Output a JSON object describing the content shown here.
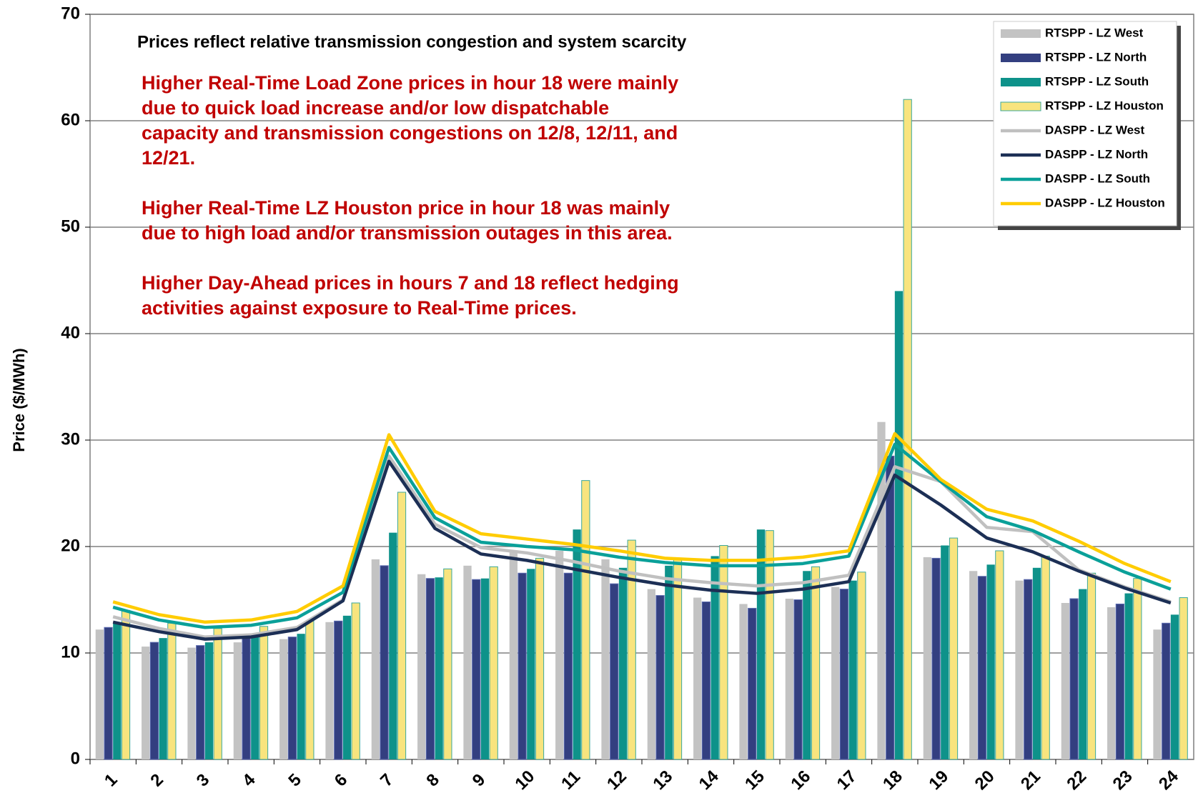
{
  "chart_data": {
    "type": "bar_line",
    "y_label": "Price ($/MWh)",
    "note": "Prices reflect relative transmission congestion and system scarcity",
    "annotations": [
      [
        "Higher Real-Time Load Zone prices in hour 18 were mainly",
        "due to quick load increase and/or low dispatchable",
        "capacity and transmission congestions on 12/8, 12/11, and",
        "12/21."
      ],
      [
        "Higher Real-Time LZ Houston price in hour 18 was mainly",
        "due to high load and/or transmission outages in this area."
      ],
      [
        "Higher Day-Ahead prices in hours 7 and 18 reflect hedging",
        "activities against exposure to Real-Time prices."
      ]
    ],
    "categories": [
      "1",
      "2",
      "3",
      "4",
      "5",
      "6",
      "7",
      "8",
      "9",
      "10",
      "11",
      "12",
      "13",
      "14",
      "15",
      "16",
      "17",
      "18",
      "19",
      "20",
      "21",
      "22",
      "23",
      "24"
    ],
    "ylim": [
      0,
      70
    ],
    "yticks": [
      0,
      10,
      20,
      30,
      40,
      50,
      60,
      70
    ],
    "grid": true,
    "series": [
      {
        "name": "RTSPP - LZ West",
        "kind": "bar",
        "color": "#c3c3c3",
        "values": [
          12.2,
          10.6,
          10.5,
          11.0,
          11.3,
          12.9,
          18.8,
          17.4,
          18.2,
          19.6,
          19.6,
          18.8,
          16.0,
          15.2,
          14.6,
          15.1,
          16.2,
          31.7,
          19.0,
          17.7,
          16.8,
          14.7,
          14.3,
          12.2
        ]
      },
      {
        "name": "RTSPP - LZ North",
        "kind": "bar",
        "color": "#333f80",
        "values": [
          12.4,
          11.0,
          10.7,
          11.4,
          11.5,
          13.0,
          18.2,
          17.0,
          16.9,
          17.5,
          17.5,
          16.5,
          15.4,
          14.8,
          14.2,
          15.0,
          16.0,
          28.5,
          18.9,
          17.2,
          16.9,
          15.1,
          14.6,
          12.8
        ]
      },
      {
        "name": "RTSPP - LZ South",
        "kind": "bar",
        "color": "#0e928a",
        "values": [
          12.8,
          11.4,
          11.0,
          11.5,
          11.8,
          13.5,
          21.3,
          17.1,
          17.0,
          17.9,
          21.6,
          18.0,
          18.2,
          19.1,
          21.6,
          17.7,
          16.8,
          44.0,
          20.1,
          18.3,
          18.0,
          16.0,
          15.6,
          13.6
        ]
      },
      {
        "name": "RTSPP - LZ Houston",
        "kind": "bar",
        "color": "#f8e47e",
        "values": [
          14.0,
          12.8,
          12.3,
          12.5,
          13.0,
          14.7,
          25.1,
          17.9,
          18.1,
          18.9,
          26.2,
          20.6,
          18.8,
          20.1,
          21.5,
          18.1,
          17.6,
          62.0,
          20.8,
          19.6,
          19.1,
          17.5,
          17.0,
          15.2
        ]
      },
      {
        "name": "DASPP - LZ West",
        "kind": "line",
        "color": "#c0c0c0",
        "values": [
          13.4,
          12.3,
          11.5,
          11.7,
          12.4,
          15.0,
          28.5,
          22.1,
          19.9,
          19.4,
          18.6,
          17.7,
          17.0,
          16.6,
          16.3,
          16.6,
          17.3,
          27.5,
          26.1,
          21.8,
          21.4,
          17.8,
          16.2,
          14.8
        ]
      },
      {
        "name": "DASPP - LZ North",
        "kind": "line",
        "color": "#1c2f55",
        "values": [
          12.9,
          12.0,
          11.3,
          11.5,
          12.2,
          14.9,
          28.0,
          21.7,
          19.3,
          18.7,
          17.9,
          17.1,
          16.4,
          15.9,
          15.6,
          16.0,
          16.7,
          26.7,
          23.9,
          20.8,
          19.5,
          17.7,
          16.1,
          14.7
        ]
      },
      {
        "name": "DASPP - LZ South",
        "kind": "line",
        "color": "#0aa099",
        "values": [
          14.3,
          13.1,
          12.4,
          12.6,
          13.3,
          15.7,
          29.3,
          22.7,
          20.4,
          20.0,
          19.7,
          19.0,
          18.5,
          18.2,
          18.2,
          18.4,
          19.1,
          29.6,
          26.1,
          22.8,
          21.5,
          19.5,
          17.6,
          16.0
        ]
      },
      {
        "name": "DASPP - LZ Houston",
        "kind": "line",
        "color": "#ffcc00",
        "values": [
          14.8,
          13.6,
          12.9,
          13.1,
          13.9,
          16.3,
          30.5,
          23.3,
          21.2,
          20.7,
          20.2,
          19.6,
          18.9,
          18.7,
          18.7,
          19.0,
          19.6,
          30.6,
          26.3,
          23.5,
          22.4,
          20.5,
          18.4,
          16.7
        ]
      }
    ]
  }
}
